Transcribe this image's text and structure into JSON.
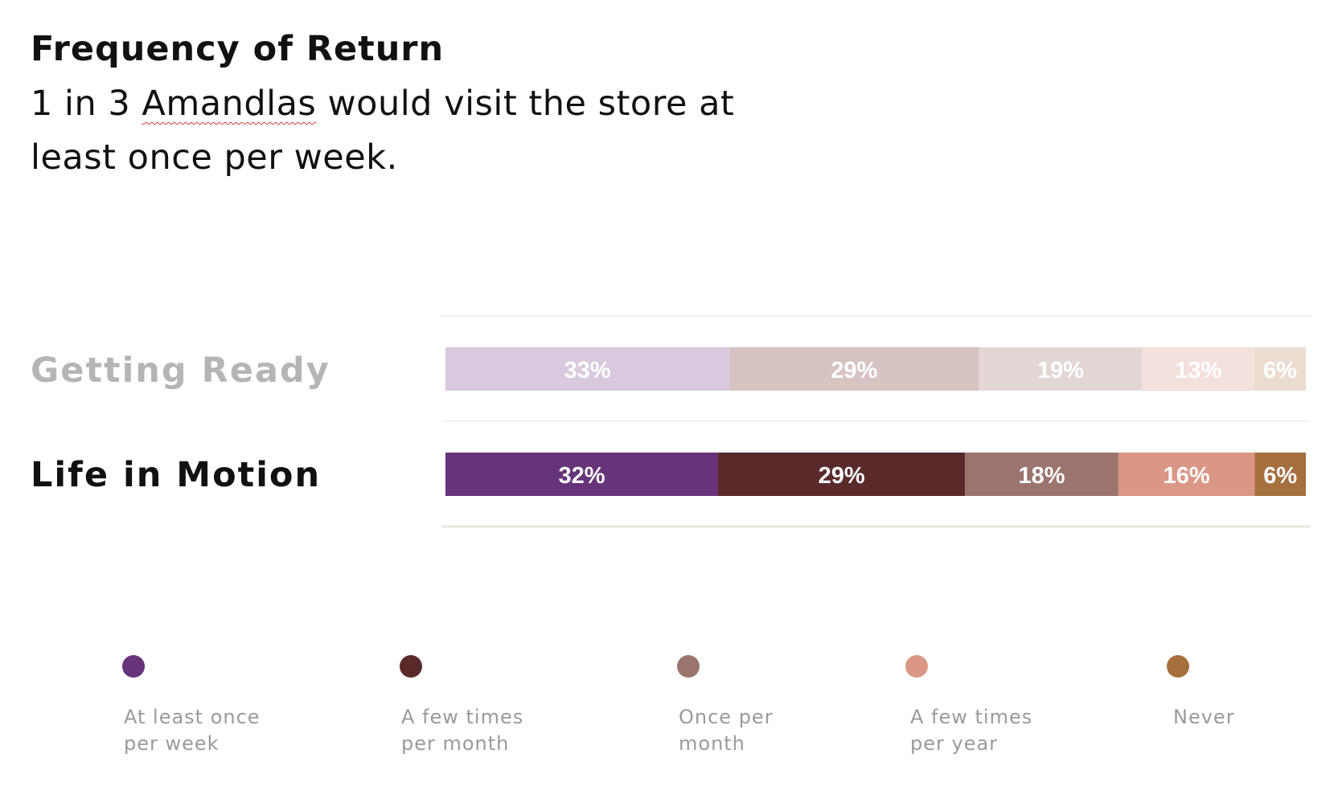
{
  "header": {
    "title": "Frequency of Return",
    "subtitle_prefix": "1 in 3 ",
    "subtitle_flagged_word": "Amandlas",
    "subtitle_suffix": " would visit the store at least once per week."
  },
  "chart_data": {
    "type": "bar",
    "orientation": "horizontal-stacked-100",
    "title": "",
    "xlabel": "",
    "ylabel": "",
    "categories": [
      "Getting Ready",
      "Life in Motion"
    ],
    "highlighted_category": "Life in Motion",
    "series": [
      {
        "name": "At least once per week",
        "values": [
          33,
          32
        ],
        "labels": [
          "33%",
          "32%"
        ]
      },
      {
        "name": "A few times per month",
        "values": [
          29,
          29
        ],
        "labels": [
          "29%",
          "29%"
        ]
      },
      {
        "name": "Once per month",
        "values": [
          19,
          18
        ],
        "labels": [
          "19%",
          "18%"
        ]
      },
      {
        "name": "A few times per year",
        "values": [
          13,
          16
        ],
        "labels": [
          "13%",
          "16%"
        ]
      },
      {
        "name": "Never",
        "values": [
          6,
          6
        ],
        "labels": [
          "6%",
          "6%"
        ]
      }
    ],
    "colors": {
      "active": [
        "#67337a",
        "#5a2a2b",
        "#9c746e",
        "#db9785",
        "#a66f3e"
      ],
      "muted": [
        "#d9c9de",
        "#d7c3c2",
        "#e3d7d5",
        "#f4e0dc",
        "#ebdcd1"
      ]
    },
    "grid": true,
    "legend_position": "bottom"
  }
}
